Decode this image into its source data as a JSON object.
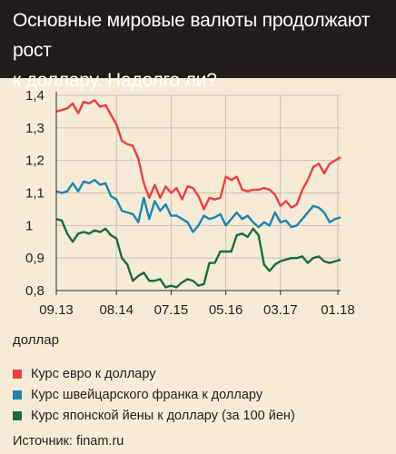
{
  "header": {
    "title": "Основные мировые валюты продолжают рост\nк доллару. Надолго ли?"
  },
  "units_label": "доллар",
  "source": "Источник: finam.ru",
  "colors": {
    "euro": "#ef3d3f",
    "chf": "#1f83b4",
    "jpy": "#1a6c3a",
    "grid": "#c9c1b1",
    "axis": "#2b2b2b"
  },
  "chart_data": {
    "type": "line",
    "title": "Основные мировые валюты продолжают рост к доллару. Надолго ли?",
    "ylabel": "доллар",
    "ylim": [
      0.8,
      1.4
    ],
    "yticks": [
      0.8,
      0.9,
      1.0,
      1.1,
      1.2,
      1.3,
      1.4
    ],
    "ytick_labels": [
      "0,8",
      "0,9",
      "1",
      "1,1",
      "1,2",
      "1,3",
      "1,4"
    ],
    "xlim": [
      0,
      52
    ],
    "xticks": [
      0,
      11,
      21,
      31,
      41,
      51.5
    ],
    "xtick_labels": [
      "09.13",
      "08.14",
      "07.15",
      "05.16",
      "03.17",
      "01.18"
    ],
    "grid": true,
    "legend_position": "bottom",
    "series": [
      {
        "name": "Курс евро к доллару",
        "color": "#ef3d3f",
        "values": [
          1.35,
          1.355,
          1.36,
          1.375,
          1.345,
          1.38,
          1.375,
          1.385,
          1.365,
          1.37,
          1.34,
          1.31,
          1.26,
          1.25,
          1.245,
          1.205,
          1.13,
          1.085,
          1.125,
          1.085,
          1.12,
          1.1,
          1.115,
          1.08,
          1.12,
          1.115,
          1.09,
          1.05,
          1.085,
          1.08,
          1.085,
          1.15,
          1.14,
          1.15,
          1.11,
          1.105,
          1.11,
          1.11,
          1.115,
          1.11,
          1.095,
          1.06,
          1.075,
          1.055,
          1.065,
          1.11,
          1.14,
          1.18,
          1.19,
          1.16,
          1.19,
          1.2,
          1.21
        ]
      },
      {
        "name": "Курс швейцарского франка к доллару",
        "color": "#1f83b4",
        "values": [
          1.105,
          1.1,
          1.105,
          1.13,
          1.105,
          1.135,
          1.13,
          1.14,
          1.125,
          1.13,
          1.09,
          1.08,
          1.045,
          1.04,
          1.035,
          1.01,
          1.085,
          1.02,
          1.075,
          1.045,
          1.065,
          1.03,
          1.03,
          1.02,
          1.01,
          0.98,
          1.0,
          1.03,
          1.02,
          1.025,
          1.035,
          1.0,
          1.02,
          1.04,
          1.02,
          1.03,
          1.01,
          0.995,
          1.01,
          1.0,
          1.04,
          1.01,
          1.015,
          0.995,
          1.0,
          1.02,
          1.04,
          1.06,
          1.055,
          1.04,
          1.01,
          1.02,
          1.025
        ]
      },
      {
        "name": "Курс японской йены к доллару (за 100 йен)",
        "color": "#1a6c3a",
        "values": [
          1.02,
          1.015,
          0.975,
          0.95,
          0.975,
          0.98,
          0.975,
          0.985,
          0.98,
          0.99,
          0.97,
          0.96,
          0.9,
          0.88,
          0.83,
          0.845,
          0.855,
          0.83,
          0.83,
          0.835,
          0.81,
          0.815,
          0.81,
          0.825,
          0.835,
          0.83,
          0.815,
          0.82,
          0.885,
          0.885,
          0.92,
          0.92,
          0.92,
          0.97,
          0.975,
          0.965,
          0.99,
          0.97,
          0.88,
          0.86,
          0.88,
          0.89,
          0.895,
          0.9,
          0.9,
          0.905,
          0.885,
          0.9,
          0.905,
          0.89,
          0.885,
          0.89,
          0.895
        ]
      }
    ]
  }
}
